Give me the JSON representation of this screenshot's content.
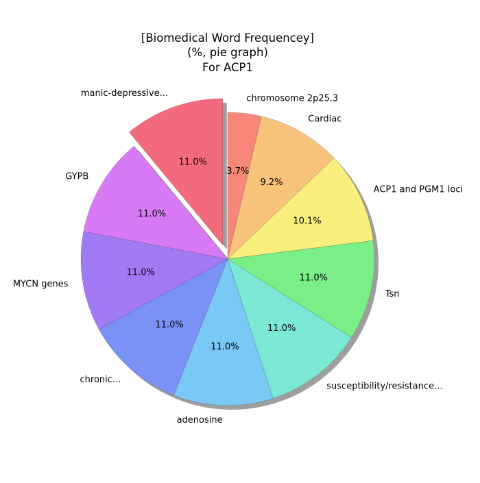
{
  "chart_data": {
    "type": "pie",
    "title": [
      "[Biomedical Word Frequencey]",
      "(%, pie graph)",
      "For ACP1"
    ],
    "categories": [
      "chromosome 2p25.3",
      "Cardiac",
      "ACP1 and PGM1 loci",
      "Tsn",
      "susceptibility/resistance...",
      "adenosine",
      "chronic...",
      "MYCN genes",
      "GYPB",
      "manic-depressive..."
    ],
    "values": [
      3.7,
      9.2,
      10.1,
      11.0,
      11.0,
      11.0,
      11.0,
      11.0,
      11.0,
      11.0
    ],
    "value_labels": [
      "3.7%",
      "9.2%",
      "10.1%",
      "11.0%",
      "11.0%",
      "11.0%",
      "11.0%",
      "11.0%",
      "11.0%",
      "11.0%"
    ],
    "colors": [
      "#f7877a",
      "#f8c47c",
      "#f8ef7c",
      "#7aef87",
      "#7ae8d5",
      "#7ac8f5",
      "#7a92f5",
      "#a37af5",
      "#d87af5",
      "#f26a7c"
    ],
    "exploded": [
      false,
      false,
      false,
      false,
      false,
      false,
      false,
      false,
      false,
      true
    ],
    "start_angle_deg": 90,
    "direction": "clockwise",
    "shadow": true
  }
}
